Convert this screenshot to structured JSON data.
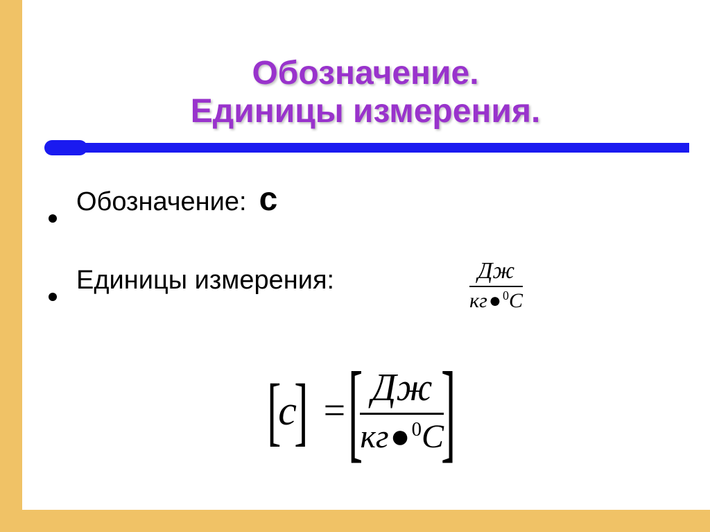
{
  "colors": {
    "border": "#f0c266",
    "title": "#9933cc",
    "rule": "#1a1af0",
    "text": "#000000",
    "background": "#ffffff"
  },
  "title": {
    "line1": "Обозначение.",
    "line2": "Единицы измерения.",
    "fontsize": 48
  },
  "bullets": {
    "b1_label": "Обозначение:",
    "b1_symbol": "с",
    "b2_label": "Единицы измерения:"
  },
  "fraction": {
    "numerator": "Дж",
    "denom_kg": "кг",
    "denom_dot": "●",
    "denom_sup": "0",
    "denom_C": "С"
  },
  "equation": {
    "lhs_lbracket": "[",
    "lhs_var": "с",
    "lhs_rbracket": "]",
    "equals": "=",
    "big_lbracket": "[",
    "big_rbracket": "]"
  }
}
